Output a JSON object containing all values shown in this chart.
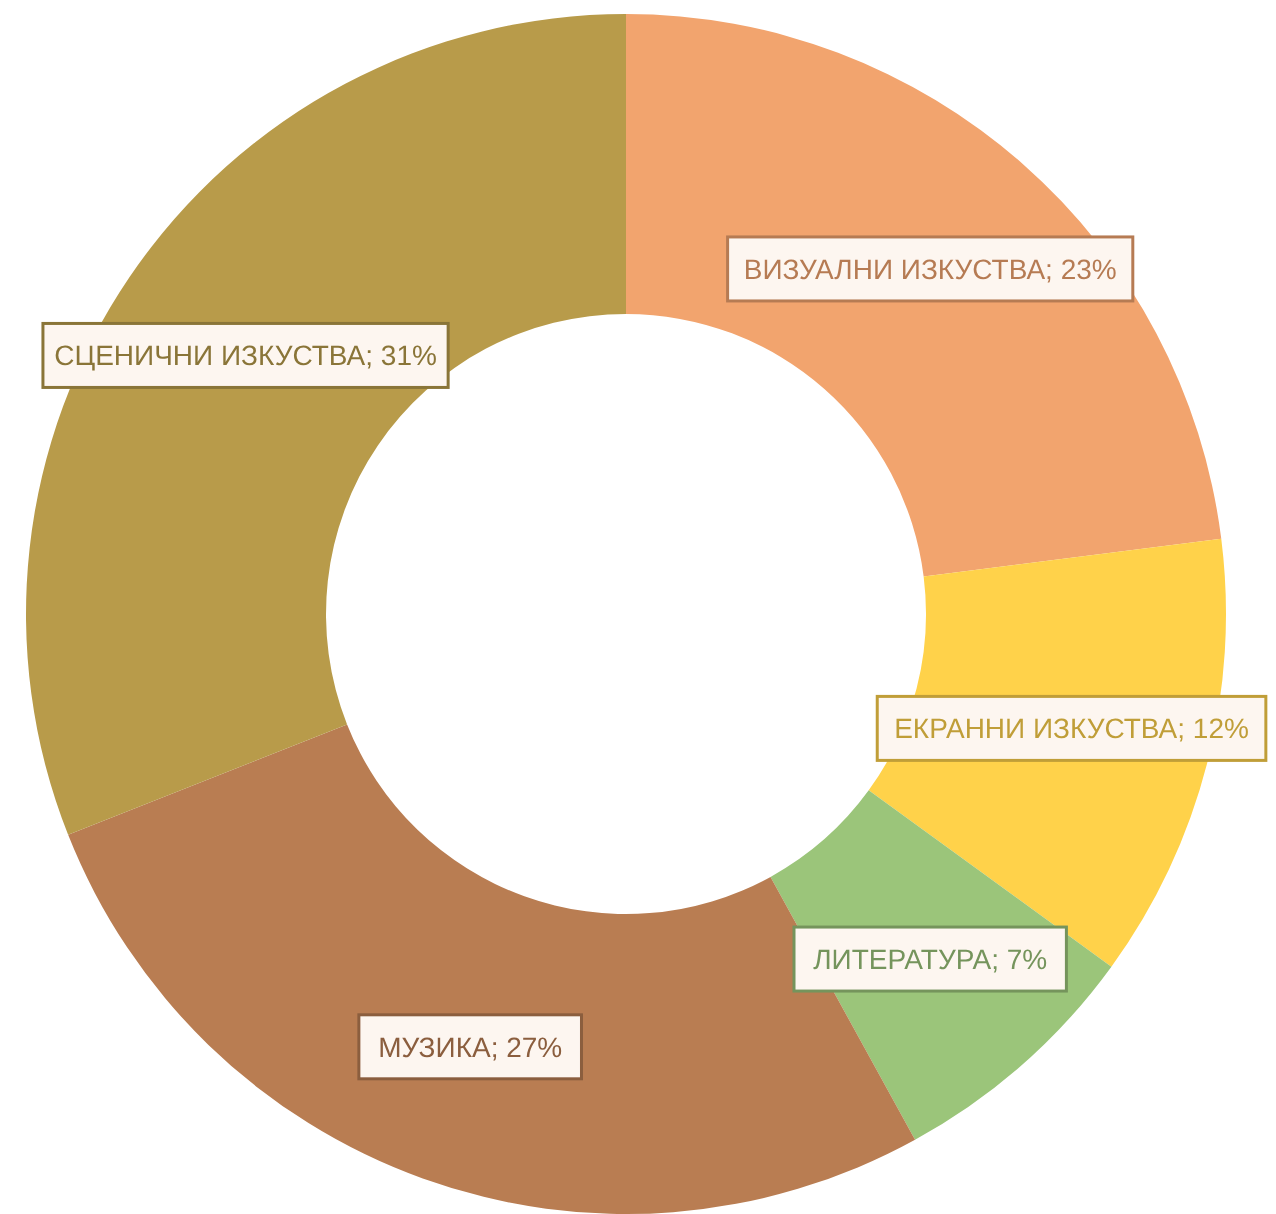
{
  "chart_data": {
    "type": "donut",
    "categories": [
      "ВИЗУАЛНИ ИЗКУСТВА",
      "ЕКРАННИ ИЗКУСТВА",
      "ЛИТЕРАТУРА",
      "МУЗИКА",
      "СЦЕНИЧНИ ИЗКУСТВА"
    ],
    "values": [
      23,
      12,
      7,
      27,
      31
    ],
    "value_labels": [
      "23%",
      "12%",
      "7%",
      "27%",
      "31%"
    ],
    "colors": [
      "#f2a46e",
      "#ffd24a",
      "#9bc57a",
      "#b97d52",
      "#b89b4a"
    ],
    "legend": false
  }
}
